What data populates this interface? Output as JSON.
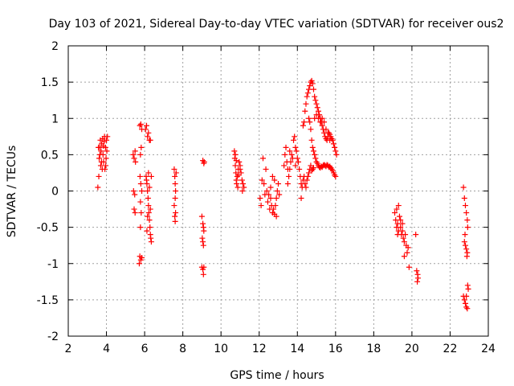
{
  "chart_data": {
    "type": "scatter",
    "title": "Day 103 of 2021, Sidereal Day-to-day VTEC variation (SDTVAR) for receiver ous2",
    "xlabel": "GPS time / hours",
    "ylabel": "SDTVAR / TECUs",
    "xlim": [
      2,
      24
    ],
    "ylim": [
      -2,
      2
    ],
    "xticks": [
      2,
      4,
      6,
      8,
      10,
      12,
      14,
      16,
      18,
      20,
      22,
      24
    ],
    "yticks": [
      -2,
      -1.5,
      -1,
      -0.5,
      0,
      0.5,
      1,
      1.5,
      2
    ],
    "xtick_labels": [
      "2",
      "4",
      "6",
      "8",
      "10",
      "12",
      "14",
      "16",
      "18",
      "20",
      "22",
      "24"
    ],
    "ytick_labels": [
      "-2",
      "-1.5",
      "-1",
      "-0.5",
      "0",
      "0.5",
      "1",
      "1.5",
      "2"
    ],
    "grid": true,
    "marker": "+",
    "marker_color": "#ff0000",
    "series": [
      {
        "name": "SDTVAR",
        "points": [
          [
            3.55,
            0.05
          ],
          [
            3.6,
            0.2
          ],
          [
            3.62,
            0.45
          ],
          [
            3.65,
            0.6
          ],
          [
            3.68,
            0.7
          ],
          [
            3.7,
            0.35
          ],
          [
            3.72,
            0.55
          ],
          [
            3.75,
            0.65
          ],
          [
            3.78,
            0.3
          ],
          [
            3.8,
            0.72
          ],
          [
            3.82,
            0.5
          ],
          [
            3.85,
            0.4
          ],
          [
            3.88,
            0.68
          ],
          [
            3.9,
            0.75
          ],
          [
            3.92,
            0.3
          ],
          [
            3.95,
            0.6
          ],
          [
            3.98,
            0.45
          ],
          [
            4.0,
            0.7
          ],
          [
            4.02,
            0.55
          ],
          [
            4.05,
            0.75
          ],
          [
            3.58,
            0.6
          ],
          [
            3.66,
            0.5
          ],
          [
            3.74,
            0.4
          ],
          [
            3.84,
            0.62
          ],
          [
            3.96,
            0.35
          ],
          [
            5.4,
            0.5
          ],
          [
            5.45,
            0.45
          ],
          [
            5.5,
            0.55
          ],
          [
            5.42,
            0.0
          ],
          [
            5.48,
            -0.05
          ],
          [
            5.45,
            -0.25
          ],
          [
            5.5,
            -0.3
          ],
          [
            5.52,
            0.4
          ],
          [
            5.75,
            0.9
          ],
          [
            5.8,
            0.92
          ],
          [
            5.85,
            0.85
          ],
          [
            5.78,
            0.5
          ],
          [
            5.82,
            0.6
          ],
          [
            5.76,
            0.2
          ],
          [
            5.8,
            0.1
          ],
          [
            5.85,
            0.0
          ],
          [
            5.78,
            -0.15
          ],
          [
            5.82,
            -0.3
          ],
          [
            5.78,
            -0.5
          ],
          [
            5.75,
            -0.9
          ],
          [
            5.8,
            -0.95
          ],
          [
            5.85,
            -0.92
          ],
          [
            5.72,
            -1.0
          ],
          [
            6.05,
            0.85
          ],
          [
            6.1,
            0.9
          ],
          [
            6.15,
            0.75
          ],
          [
            6.2,
            0.8
          ],
          [
            6.25,
            0.7
          ],
          [
            6.3,
            0.7
          ],
          [
            6.08,
            0.2
          ],
          [
            6.12,
            0.1
          ],
          [
            6.15,
            0.0
          ],
          [
            6.18,
            -0.1
          ],
          [
            6.2,
            -0.2
          ],
          [
            6.22,
            -0.3
          ],
          [
            6.25,
            -0.4
          ],
          [
            6.28,
            -0.5
          ],
          [
            6.3,
            -0.6
          ],
          [
            6.32,
            -0.65
          ],
          [
            6.35,
            -0.7
          ],
          [
            6.1,
            0.15
          ],
          [
            6.2,
            0.25
          ],
          [
            6.3,
            -0.25
          ],
          [
            6.35,
            0.2
          ],
          [
            6.15,
            -0.35
          ],
          [
            6.25,
            0.05
          ],
          [
            6.12,
            -0.55
          ],
          [
            7.55,
            0.3
          ],
          [
            7.58,
            0.2
          ],
          [
            7.6,
            0.1
          ],
          [
            7.62,
            0.0
          ],
          [
            7.6,
            -0.1
          ],
          [
            7.55,
            -0.2
          ],
          [
            7.62,
            -0.3
          ],
          [
            7.58,
            -0.35
          ],
          [
            7.6,
            -0.42
          ],
          [
            7.65,
            0.25
          ],
          [
            9.05,
            0.42
          ],
          [
            9.1,
            0.38
          ],
          [
            9.12,
            0.4
          ],
          [
            9.0,
            -0.35
          ],
          [
            9.05,
            -0.45
          ],
          [
            9.08,
            -0.5
          ],
          [
            9.1,
            -0.55
          ],
          [
            9.02,
            -0.65
          ],
          [
            9.05,
            -0.7
          ],
          [
            9.08,
            -0.75
          ],
          [
            9.0,
            -1.05
          ],
          [
            9.05,
            -1.08
          ],
          [
            9.1,
            -1.05
          ],
          [
            9.08,
            -1.15
          ],
          [
            10.7,
            0.55
          ],
          [
            10.72,
            0.45
          ],
          [
            10.75,
            0.35
          ],
          [
            10.78,
            0.25
          ],
          [
            10.8,
            0.15
          ],
          [
            10.82,
            0.1
          ],
          [
            10.85,
            0.2
          ],
          [
            10.9,
            0.3
          ],
          [
            10.95,
            0.4
          ],
          [
            11.0,
            0.35
          ],
          [
            11.05,
            0.25
          ],
          [
            11.1,
            0.15
          ],
          [
            11.15,
            0.1
          ],
          [
            11.2,
            0.05
          ],
          [
            10.75,
            0.5
          ],
          [
            10.88,
            0.05
          ],
          [
            11.0,
            0.3
          ],
          [
            11.12,
            0.0
          ],
          [
            10.8,
            0.42
          ],
          [
            10.92,
            0.22
          ],
          [
            12.05,
            -0.1
          ],
          [
            12.1,
            -0.2
          ],
          [
            12.15,
            0.15
          ],
          [
            12.2,
            0.45
          ],
          [
            12.25,
            0.1
          ],
          [
            12.3,
            -0.05
          ],
          [
            12.35,
            0.3
          ],
          [
            12.4,
            0.0
          ],
          [
            12.45,
            -0.15
          ],
          [
            12.5,
            -0.05
          ],
          [
            12.55,
            -0.25
          ],
          [
            12.6,
            -0.1
          ],
          [
            12.65,
            -0.2
          ],
          [
            12.7,
            -0.3
          ],
          [
            12.75,
            -0.25
          ],
          [
            12.8,
            -0.32
          ],
          [
            12.85,
            -0.2
          ],
          [
            12.9,
            -0.1
          ],
          [
            12.95,
            0.0
          ],
          [
            13.0,
            0.1
          ],
          [
            13.05,
            -0.05
          ],
          [
            12.7,
            0.2
          ],
          [
            12.8,
            0.15
          ],
          [
            12.9,
            -0.35
          ],
          [
            12.6,
            0.05
          ],
          [
            13.3,
            0.35
          ],
          [
            13.35,
            0.5
          ],
          [
            13.4,
            0.6
          ],
          [
            13.45,
            0.4
          ],
          [
            13.5,
            0.3
          ],
          [
            13.55,
            0.2
          ],
          [
            13.6,
            0.3
          ],
          [
            13.65,
            0.4
          ],
          [
            13.7,
            0.5
          ],
          [
            13.75,
            0.45
          ],
          [
            13.8,
            0.7
          ],
          [
            13.85,
            0.75
          ],
          [
            13.9,
            0.6
          ],
          [
            13.95,
            0.55
          ],
          [
            14.0,
            0.45
          ],
          [
            14.05,
            0.4
          ],
          [
            14.1,
            0.3
          ],
          [
            14.15,
            0.2
          ],
          [
            14.2,
            0.1
          ],
          [
            14.25,
            0.05
          ],
          [
            14.3,
            0.15
          ],
          [
            14.35,
            0.2
          ],
          [
            13.5,
            0.1
          ],
          [
            13.9,
            0.35
          ],
          [
            14.2,
            -0.1
          ],
          [
            13.6,
            0.55
          ],
          [
            14.3,
            0.9
          ],
          [
            14.35,
            0.95
          ],
          [
            14.4,
            1.1
          ],
          [
            14.45,
            1.2
          ],
          [
            14.5,
            1.3
          ],
          [
            14.55,
            1.35
          ],
          [
            14.6,
            1.4
          ],
          [
            14.65,
            1.45
          ],
          [
            14.7,
            1.5
          ],
          [
            14.75,
            1.52
          ],
          [
            14.8,
            1.48
          ],
          [
            14.85,
            1.4
          ],
          [
            14.9,
            1.3
          ],
          [
            14.95,
            1.25
          ],
          [
            15.0,
            1.2
          ],
          [
            15.05,
            1.15
          ],
          [
            15.1,
            1.1
          ],
          [
            15.15,
            1.05
          ],
          [
            15.2,
            1.0
          ],
          [
            15.25,
            0.95
          ],
          [
            15.3,
            0.9
          ],
          [
            15.35,
            0.85
          ],
          [
            15.4,
            0.8
          ],
          [
            15.45,
            0.75
          ],
          [
            15.5,
            0.72
          ],
          [
            15.55,
            0.7
          ],
          [
            15.6,
            0.75
          ],
          [
            15.65,
            0.8
          ],
          [
            15.7,
            0.78
          ],
          [
            15.75,
            0.75
          ],
          [
            15.8,
            0.72
          ],
          [
            15.85,
            0.7
          ],
          [
            15.9,
            0.65
          ],
          [
            15.95,
            0.6
          ],
          [
            16.0,
            0.55
          ],
          [
            16.05,
            0.5
          ],
          [
            14.6,
            1.0
          ],
          [
            14.65,
            0.95
          ],
          [
            14.7,
            0.85
          ],
          [
            14.75,
            0.7
          ],
          [
            14.8,
            0.6
          ],
          [
            14.85,
            0.55
          ],
          [
            14.9,
            0.5
          ],
          [
            14.95,
            0.45
          ],
          [
            15.0,
            0.4
          ],
          [
            15.05,
            0.38
          ],
          [
            15.1,
            0.35
          ],
          [
            15.15,
            0.33
          ],
          [
            15.2,
            0.32
          ],
          [
            15.25,
            0.34
          ],
          [
            15.3,
            0.33
          ],
          [
            15.35,
            0.35
          ],
          [
            15.4,
            0.36
          ],
          [
            15.45,
            0.35
          ],
          [
            15.5,
            0.34
          ],
          [
            15.55,
            0.36
          ],
          [
            15.6,
            0.35
          ],
          [
            15.65,
            0.33
          ],
          [
            15.7,
            0.34
          ],
          [
            15.75,
            0.32
          ],
          [
            15.8,
            0.3
          ],
          [
            15.85,
            0.28
          ],
          [
            15.9,
            0.25
          ],
          [
            15.95,
            0.22
          ],
          [
            16.0,
            0.2
          ],
          [
            14.5,
            0.15
          ],
          [
            14.55,
            0.2
          ],
          [
            14.6,
            0.25
          ],
          [
            14.65,
            0.3
          ],
          [
            14.7,
            0.35
          ],
          [
            14.75,
            0.28
          ],
          [
            14.8,
            0.3
          ],
          [
            14.85,
            0.32
          ],
          [
            14.4,
            0.1
          ],
          [
            14.45,
            0.05
          ],
          [
            14.9,
            1.0
          ],
          [
            15.0,
            1.05
          ],
          [
            15.1,
            1.0
          ],
          [
            15.2,
            0.95
          ],
          [
            15.3,
            1.0
          ],
          [
            15.4,
            0.95
          ],
          [
            15.5,
            0.85
          ],
          [
            15.6,
            0.8
          ],
          [
            15.7,
            0.7
          ],
          [
            19.1,
            -0.3
          ],
          [
            19.15,
            -0.4
          ],
          [
            19.2,
            -0.5
          ],
          [
            19.25,
            -0.45
          ],
          [
            19.3,
            -0.55
          ],
          [
            19.35,
            -0.35
          ],
          [
            19.4,
            -0.5
          ],
          [
            19.45,
            -0.6
          ],
          [
            19.5,
            -0.55
          ],
          [
            19.55,
            -0.65
          ],
          [
            19.6,
            -0.7
          ],
          [
            19.65,
            -0.6
          ],
          [
            19.7,
            -0.75
          ],
          [
            19.75,
            -0.85
          ],
          [
            19.8,
            -0.78
          ],
          [
            19.85,
            -1.05
          ],
          [
            19.2,
            -0.25
          ],
          [
            19.3,
            -0.2
          ],
          [
            19.4,
            -0.4
          ],
          [
            19.25,
            -0.6
          ],
          [
            19.5,
            -0.45
          ],
          [
            19.6,
            -0.9
          ],
          [
            20.2,
            -0.6
          ],
          [
            20.25,
            -1.1
          ],
          [
            20.3,
            -1.15
          ],
          [
            20.28,
            -1.25
          ],
          [
            20.32,
            -1.2
          ],
          [
            22.7,
            0.05
          ],
          [
            22.75,
            -0.1
          ],
          [
            22.8,
            -0.2
          ],
          [
            22.85,
            -0.3
          ],
          [
            22.9,
            -0.4
          ],
          [
            22.92,
            -0.5
          ],
          [
            22.75,
            -0.7
          ],
          [
            22.8,
            -0.75
          ],
          [
            22.85,
            -0.8
          ],
          [
            22.9,
            -0.85
          ],
          [
            22.88,
            -0.9
          ],
          [
            22.78,
            -0.6
          ],
          [
            22.7,
            -1.45
          ],
          [
            22.75,
            -1.5
          ],
          [
            22.8,
            -1.55
          ],
          [
            22.85,
            -1.6
          ],
          [
            22.9,
            -1.62
          ],
          [
            22.95,
            -1.35
          ],
          [
            22.92,
            -1.3
          ],
          [
            22.85,
            -1.45
          ]
        ]
      }
    ]
  }
}
